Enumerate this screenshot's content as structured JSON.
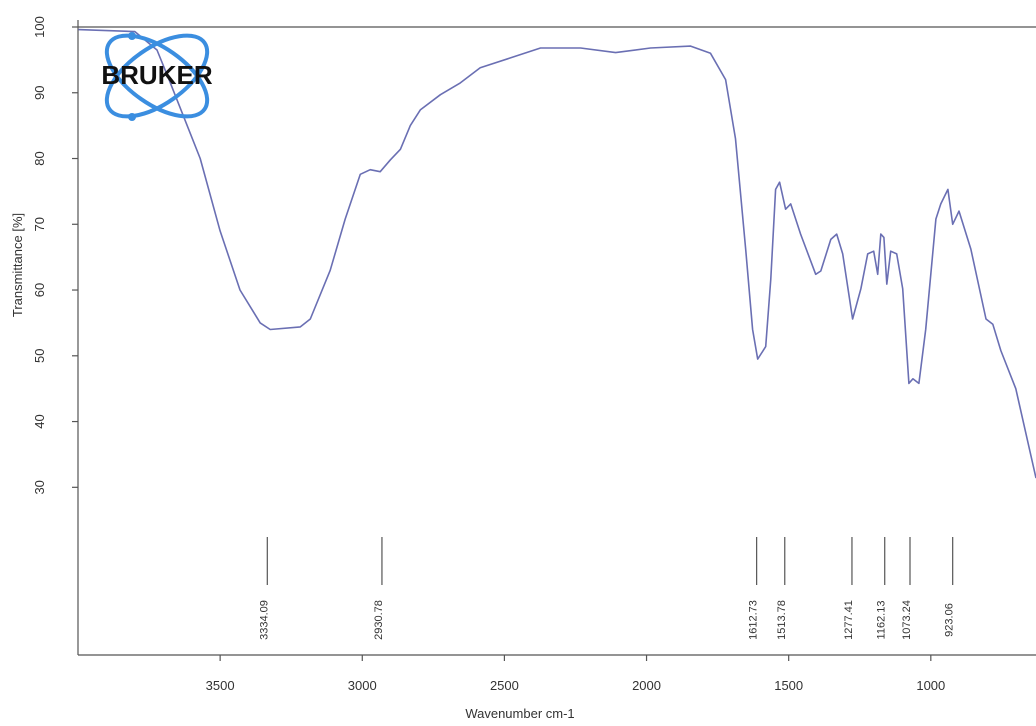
{
  "chart_data": {
    "type": "line",
    "logo": "BRUKER",
    "x_label": "Wavenumber cm-1",
    "y_label": "Transmittance [%]",
    "color": "#6a6fb3",
    "xlim": [
      4000,
      630
    ],
    "ylim": [
      4.5,
      100
    ],
    "xticks": [
      3500,
      3000,
      2500,
      2000,
      1500,
      1000
    ],
    "yticks": [
      30,
      40,
      50,
      60,
      70,
      80,
      90,
      100
    ],
    "x": [
      3999,
      3800,
      3722,
      3680,
      3570,
      3500,
      3430,
      3359,
      3324,
      3218,
      3183,
      3113,
      3060,
      3007,
      2972,
      2937,
      2901,
      2866,
      2831,
      2796,
      2725,
      2655,
      2585,
      2479,
      2373,
      2232,
      2109,
      1986,
      1845,
      1775,
      1722,
      1687,
      1651,
      1627,
      1609,
      1581,
      1563,
      1546,
      1532,
      1511,
      1493,
      1458,
      1405,
      1387,
      1352,
      1331,
      1310,
      1275,
      1246,
      1222,
      1201,
      1187,
      1176,
      1165,
      1155,
      1141,
      1120,
      1099,
      1077,
      1063,
      1042,
      1018,
      982,
      965,
      940,
      923,
      901,
      859,
      806,
      782,
      754,
      701,
      630
    ],
    "values": [
      99.6,
      99.3,
      96.5,
      92,
      80,
      69,
      60,
      55,
      54,
      54.4,
      55.6,
      63,
      70.8,
      77.6,
      78.3,
      78,
      79.8,
      81.4,
      85,
      87.4,
      89.7,
      91.5,
      93.8,
      95.3,
      96.8,
      96.8,
      96.1,
      96.8,
      97.1,
      96,
      92,
      83,
      66,
      54,
      49.5,
      51.4,
      61.7,
      75.3,
      76.4,
      72.3,
      73.1,
      68.5,
      62.4,
      62.9,
      67.7,
      68.5,
      65.5,
      55.6,
      60.2,
      65.5,
      65.9,
      62.4,
      68.5,
      68,
      60.9,
      65.9,
      65.5,
      60.2,
      45.8,
      46.5,
      45.8,
      54,
      70.8,
      73.1,
      75.3,
      70,
      72,
      66.2,
      55.6,
      54.8,
      50.8,
      45,
      31.4
    ],
    "peak_labels": [
      3334.09,
      2930.78,
      1612.73,
      1513.78,
      1277.41,
      1162.13,
      1073.24,
      923.06
    ]
  }
}
